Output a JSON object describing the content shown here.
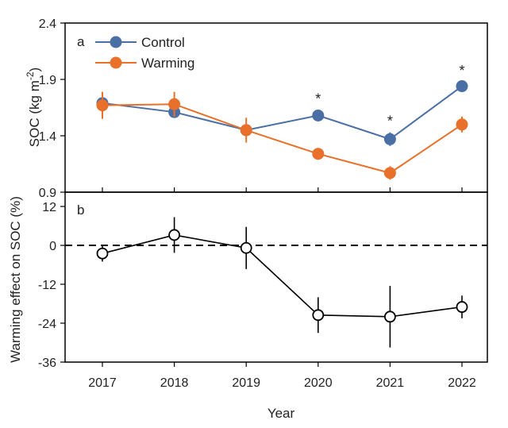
{
  "chart_data": [
    {
      "panel": "a",
      "type": "line",
      "categories": [
        "2017",
        "2018",
        "2019",
        "2020",
        "2021",
        "2022"
      ],
      "ylabel_main": "SOC (kg m",
      "ylabel_sup": "-2",
      "ylabel_close": ")",
      "ylim": [
        0.9,
        2.4
      ],
      "yticks": [
        "0.9",
        "1.4",
        "1.9",
        "2.4"
      ],
      "ytick_values": [
        0.9,
        1.4,
        1.9,
        2.4
      ],
      "legend_position": "top-left",
      "series": [
        {
          "name": "Control",
          "color": "#4a6fa5",
          "values": [
            1.69,
            1.61,
            1.45,
            1.58,
            1.37,
            1.84
          ],
          "errors": [
            0.06,
            0.05,
            0.05,
            0.05,
            0.06,
            0.04
          ]
        },
        {
          "name": "Warming",
          "color": "#e8702a",
          "values": [
            1.67,
            1.68,
            1.45,
            1.24,
            1.07,
            1.5
          ],
          "errors": [
            0.12,
            0.11,
            0.11,
            0.04,
            0.06,
            0.07
          ]
        }
      ],
      "significance": [
        {
          "category": "2020",
          "label": "*"
        },
        {
          "category": "2021",
          "label": "*"
        },
        {
          "category": "2022",
          "label": "*"
        }
      ]
    },
    {
      "panel": "b",
      "type": "line",
      "categories": [
        "2017",
        "2018",
        "2019",
        "2020",
        "2021",
        "2022"
      ],
      "ylabel": "Warming effect on SOC (%)",
      "xlabel": "Year",
      "ylim": [
        -36,
        12
      ],
      "yticks": [
        "12",
        "0",
        "-12",
        "-24",
        "-36"
      ],
      "ytick_values": [
        12,
        0,
        -12,
        -24,
        -36
      ],
      "reference_line": 0,
      "series": [
        {
          "name": "Warming effect",
          "color": "#000000",
          "values": [
            -2.5,
            3.2,
            -0.8,
            -21.5,
            -22.0,
            -19.0
          ],
          "errors": [
            2.5,
            5.5,
            6.5,
            5.5,
            9.5,
            3.5
          ]
        }
      ]
    }
  ]
}
